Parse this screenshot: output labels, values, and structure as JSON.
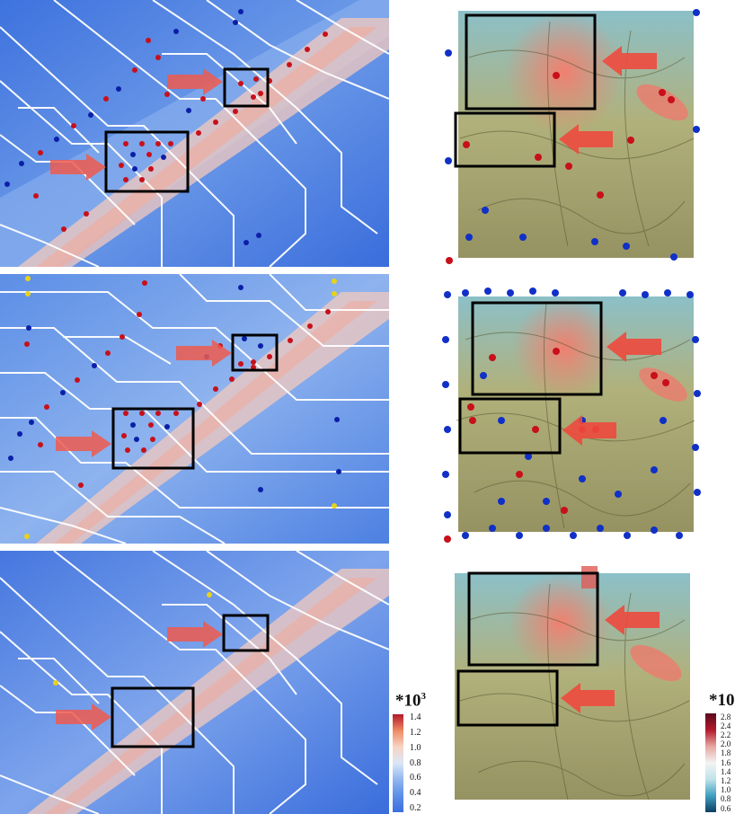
{
  "colorbar_left": {
    "title_base": "*10",
    "title_exp": "3",
    "ticks": [
      "1.4",
      "1.2",
      "1.0",
      "0.8",
      "0.6",
      "0.4",
      "0.2"
    ],
    "colors": [
      "#b2182b",
      "#ef8a62",
      "#f7d4c4",
      "#dbe6f7",
      "#91b6f0",
      "#5a8ee8",
      "#3b6fe0"
    ]
  },
  "colorbar_right": {
    "title": "*10",
    "ticks": [
      "2.8",
      "2.4",
      "2.2",
      "2.0",
      "1.8",
      "1.6",
      "1.4",
      "1.2",
      "1.0",
      "0.8",
      "0.6"
    ],
    "colors": [
      "#5b0a1c",
      "#b2182b",
      "#e8a6a0",
      "#f3f3f3",
      "#bfe3ea",
      "#3fa0c0",
      "#0c3f64"
    ]
  },
  "rows": [
    {
      "name": "row-1",
      "markers": true,
      "dense": false
    },
    {
      "name": "row-2",
      "markers": true,
      "dense": true
    },
    {
      "name": "row-3",
      "markers": false,
      "dense": false
    }
  ]
}
